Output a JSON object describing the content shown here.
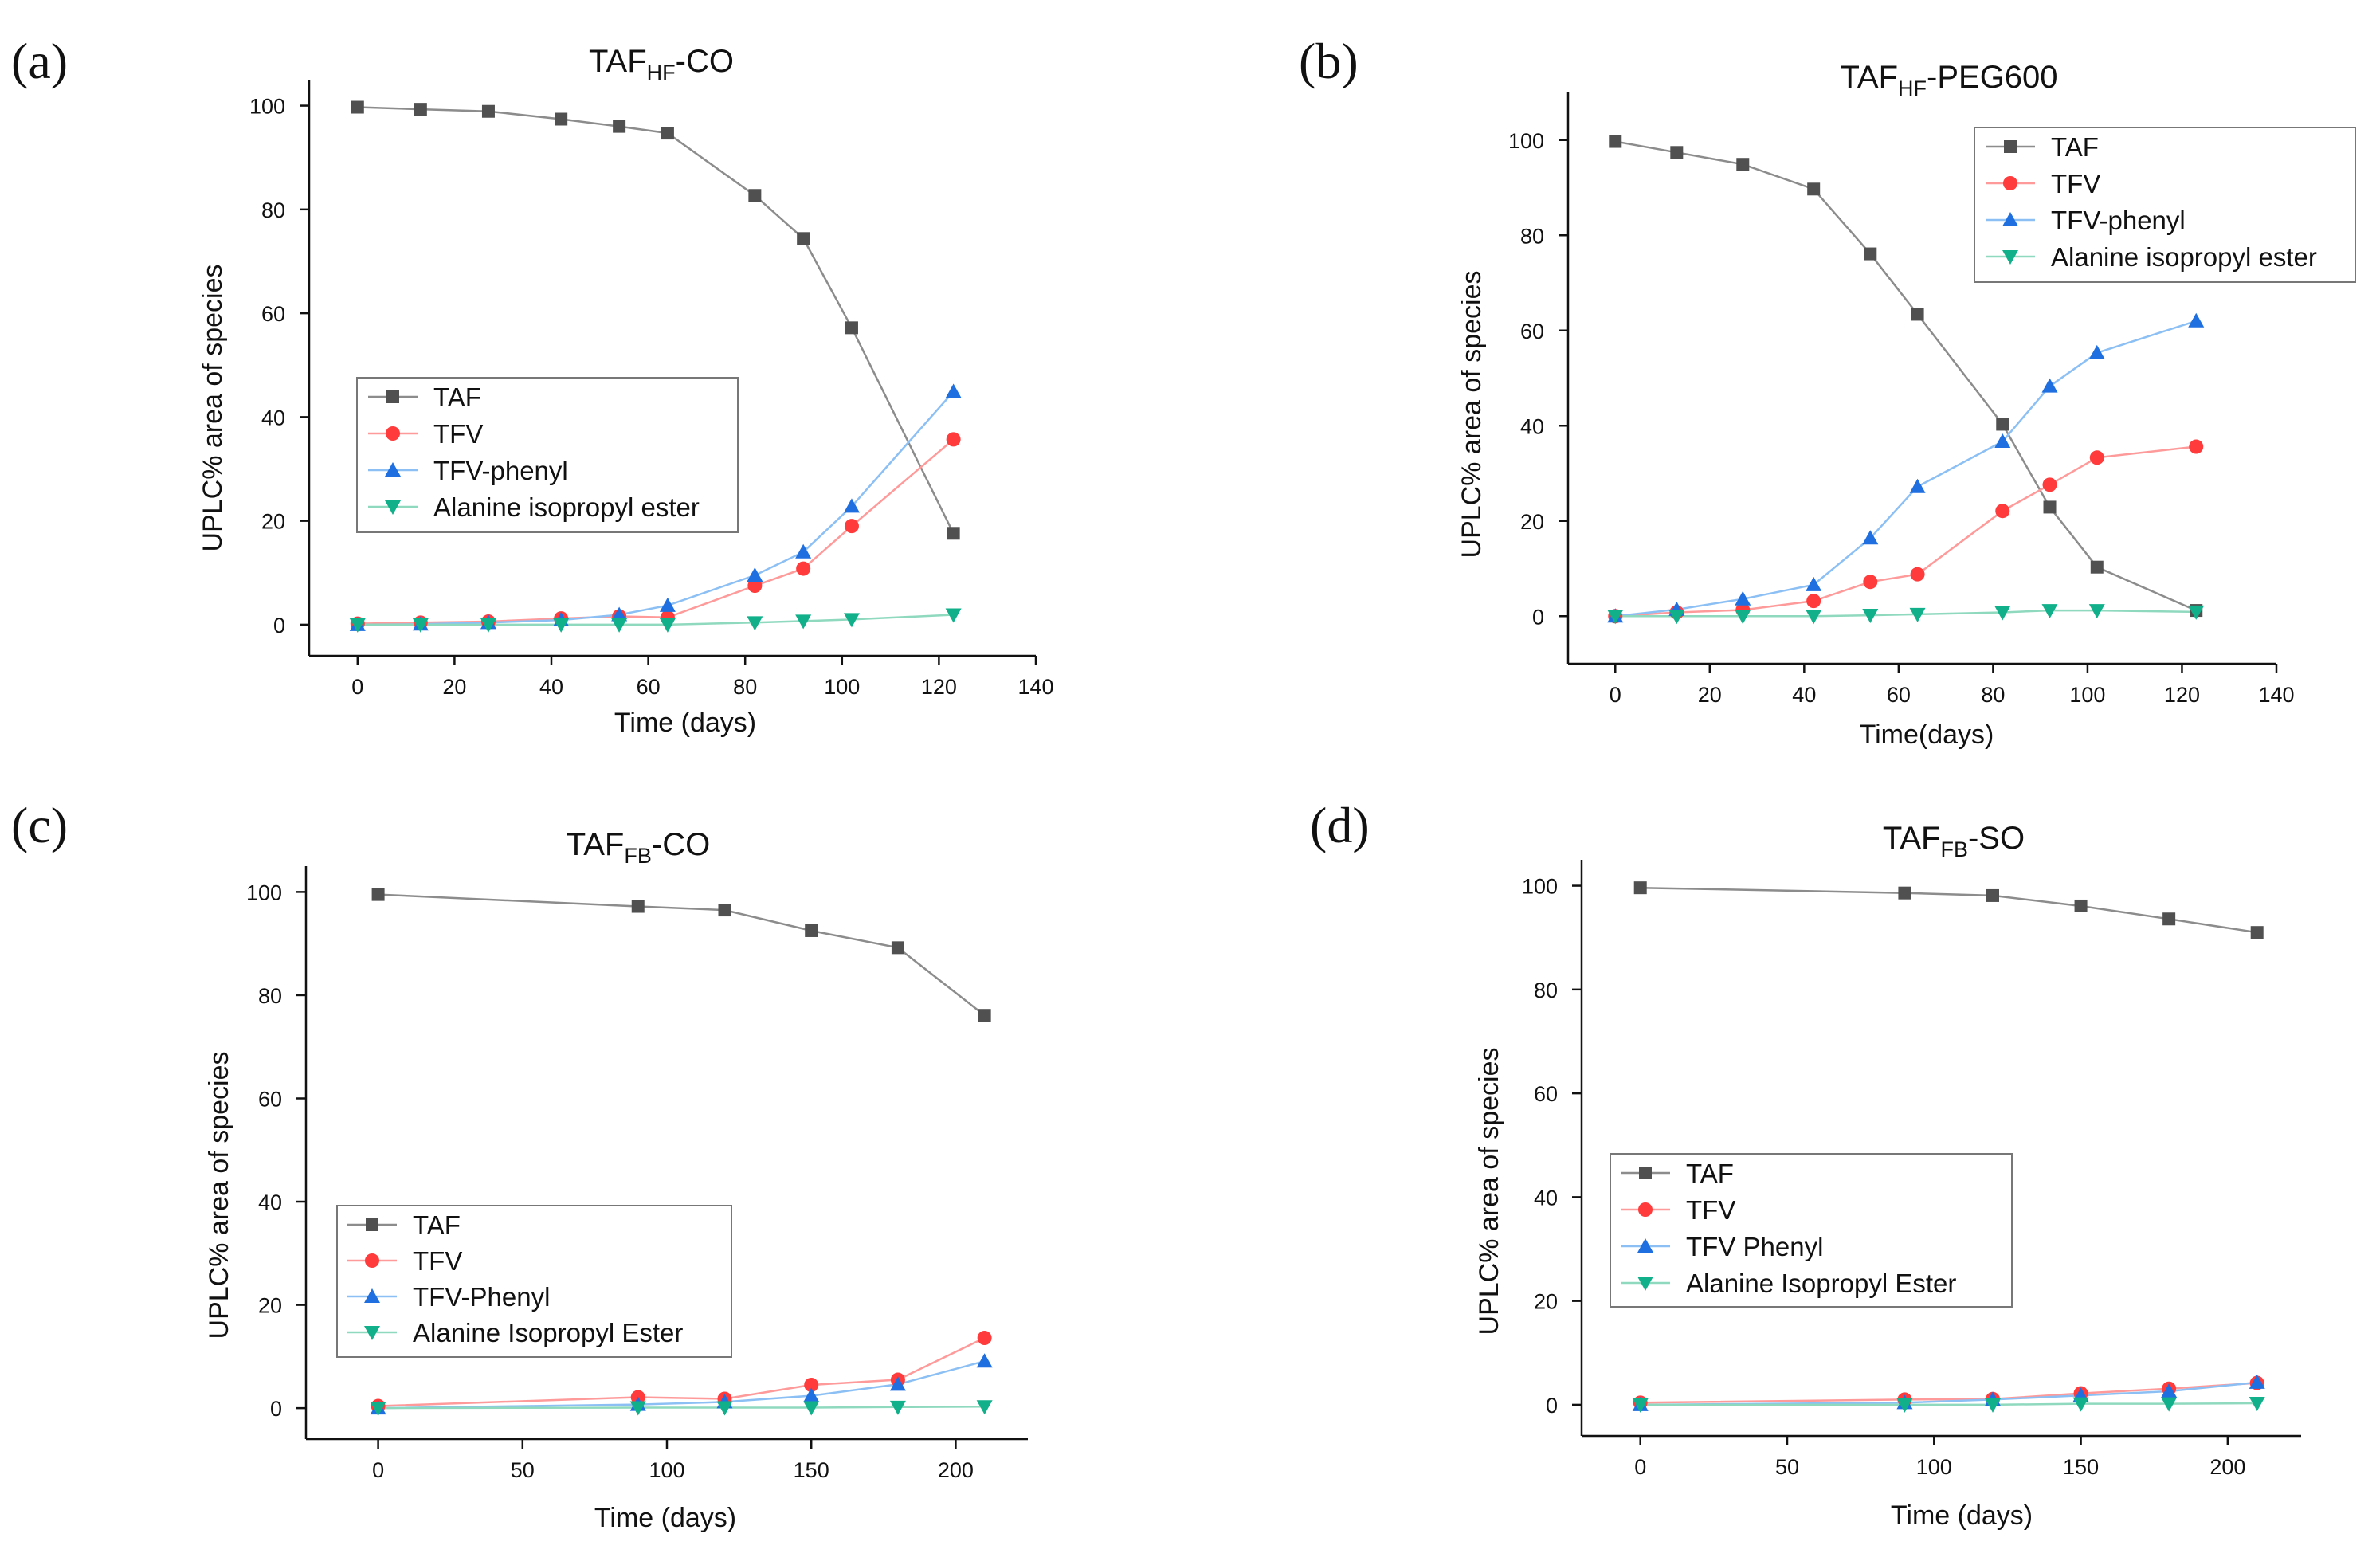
{
  "figure": {
    "panels": [
      "(a)",
      "(b)",
      "(c)",
      "(d)"
    ]
  },
  "colors": {
    "TAF": "#505050",
    "TFV": "#ff3b3b",
    "TFV_phenyl": "#1f6fe0",
    "alanine": "#12b08a",
    "axis": "#111111",
    "TAF_line": "#8c8c8c",
    "TFV_line": "#ff9a9a",
    "TFV_phenyl_line": "#8cc0f5",
    "alanine_line": "#8fd9bf"
  },
  "chart_data": [
    {
      "panel": "(a)",
      "type": "line",
      "title": {
        "main": "TAF",
        "sub": "HF",
        "suffix": "-CO"
      },
      "xlabel": "Time (days)",
      "ylabel": "UPLC% area of species",
      "xlim": [
        -10,
        140
      ],
      "ylim": [
        -6,
        105
      ],
      "xticks": [
        "0",
        "20",
        "40",
        "60",
        "80",
        "100",
        "120",
        "140"
      ],
      "xtick_values": [
        0,
        20,
        40,
        60,
        80,
        100,
        120,
        140
      ],
      "yticks": [
        "0",
        "20",
        "40",
        "60",
        "80",
        "100"
      ],
      "ytick_values": [
        0,
        20,
        40,
        60,
        80,
        100
      ],
      "legend_position": "center-left",
      "series": [
        {
          "name": "TAF",
          "marker": "square",
          "x": [
            0,
            13,
            27,
            42,
            54,
            64,
            82,
            92,
            102,
            123
          ],
          "y": [
            99.7,
            99.3,
            98.9,
            97.4,
            96.0,
            94.7,
            82.7,
            74.4,
            57.2,
            17.6
          ]
        },
        {
          "name": "TFV",
          "marker": "circle",
          "x": [
            0,
            13,
            27,
            42,
            54,
            64,
            82,
            92,
            102,
            123
          ],
          "y": [
            0.2,
            0.4,
            0.6,
            1.2,
            1.6,
            1.4,
            7.5,
            10.8,
            19.0,
            35.7
          ]
        },
        {
          "name": "TFV-phenyl",
          "marker": "triangle-up",
          "x": [
            0,
            13,
            27,
            42,
            54,
            64,
            82,
            92,
            102,
            123
          ],
          "y": [
            0.0,
            0.1,
            0.4,
            0.9,
            1.9,
            3.7,
            9.5,
            14.0,
            22.8,
            44.9
          ]
        },
        {
          "name": "Alanine isopropyl ester",
          "marker": "triangle-down",
          "x": [
            0,
            13,
            27,
            42,
            54,
            64,
            82,
            92,
            102,
            123
          ],
          "y": [
            0.0,
            0.0,
            0.0,
            0.0,
            0.0,
            0.0,
            0.4,
            0.7,
            1.0,
            1.9
          ]
        }
      ]
    },
    {
      "panel": "(b)",
      "type": "line",
      "title": {
        "main": "TAF",
        "sub": "HF",
        "suffix": "-PEG600"
      },
      "xlabel": "Time(days)",
      "ylabel": "UPLC% area of species",
      "xlim": [
        -10,
        140
      ],
      "ylim": [
        -10,
        110
      ],
      "xticks": [
        "0",
        "20",
        "40",
        "60",
        "80",
        "100",
        "120",
        "140"
      ],
      "xtick_values": [
        0,
        20,
        40,
        60,
        80,
        100,
        120,
        140
      ],
      "yticks": [
        "0",
        "20",
        "40",
        "60",
        "80",
        "100"
      ],
      "ytick_values": [
        0,
        20,
        40,
        60,
        80,
        100
      ],
      "legend_position": "top-right",
      "series": [
        {
          "name": "TAF",
          "marker": "square",
          "x": [
            0,
            13,
            27,
            42,
            54,
            64,
            82,
            92,
            102,
            123
          ],
          "y": [
            99.7,
            97.4,
            94.9,
            89.7,
            76.1,
            63.4,
            40.3,
            22.9,
            10.3,
            1.2
          ]
        },
        {
          "name": "TFV",
          "marker": "circle",
          "x": [
            0,
            13,
            27,
            42,
            54,
            64,
            82,
            92,
            102,
            123
          ],
          "y": [
            0.0,
            0.8,
            1.3,
            3.2,
            7.2,
            8.8,
            22.1,
            27.6,
            33.3,
            35.6
          ]
        },
        {
          "name": "TFV-phenyl",
          "marker": "triangle-up",
          "x": [
            0,
            13,
            27,
            42,
            54,
            64,
            82,
            92,
            102,
            123
          ],
          "y": [
            0.0,
            1.4,
            3.6,
            6.6,
            16.4,
            27.2,
            36.7,
            48.3,
            55.3,
            62.0
          ]
        },
        {
          "name": "Alanine isopropyl ester",
          "marker": "triangle-down",
          "x": [
            0,
            13,
            27,
            42,
            54,
            64,
            82,
            92,
            102,
            123
          ],
          "y": [
            0.0,
            0.0,
            0.0,
            0.0,
            0.2,
            0.4,
            0.8,
            1.2,
            1.2,
            0.9
          ]
        }
      ]
    },
    {
      "panel": "(c)",
      "type": "line",
      "title": {
        "main": "TAF",
        "sub": "FB",
        "suffix": "-CO"
      },
      "xlabel": "Time (days)",
      "ylabel": "UPLC% area of species",
      "xlim": [
        -25,
        225
      ],
      "ylim": [
        -6,
        105
      ],
      "xticks": [
        "0",
        "50",
        "100",
        "150",
        "200"
      ],
      "xtick_values": [
        0,
        50,
        100,
        150,
        200
      ],
      "yticks": [
        "0",
        "20",
        "40",
        "60",
        "80",
        "100"
      ],
      "ytick_values": [
        0,
        20,
        40,
        60,
        80,
        100
      ],
      "legend_position": "bottom-left",
      "series": [
        {
          "name": "TAF",
          "marker": "square",
          "x": [
            0,
            90,
            120,
            150,
            180,
            210
          ],
          "y": [
            99.5,
            97.2,
            96.5,
            92.5,
            89.2,
            76.1
          ]
        },
        {
          "name": "TFV",
          "marker": "circle",
          "x": [
            0,
            90,
            120,
            150,
            180,
            210
          ],
          "y": [
            0.4,
            2.1,
            1.8,
            4.5,
            5.5,
            13.6
          ]
        },
        {
          "name": "TFV-Phenyl",
          "marker": "triangle-up",
          "x": [
            0,
            90,
            120,
            150,
            180,
            210
          ],
          "y": [
            0.0,
            0.7,
            1.2,
            2.4,
            4.6,
            9.1
          ]
        },
        {
          "name": "Alanine Isopropyl Ester",
          "marker": "triangle-down",
          "x": [
            0,
            90,
            120,
            150,
            180,
            210
          ],
          "y": [
            0.0,
            0.1,
            0.1,
            0.1,
            0.2,
            0.3
          ]
        }
      ]
    },
    {
      "panel": "(d)",
      "type": "line",
      "title": {
        "main": "TAF",
        "sub": "FB",
        "suffix": "-SO"
      },
      "xlabel": "Time (days)",
      "ylabel": "UPLC% area of species",
      "xlim": [
        -20,
        225
      ],
      "ylim": [
        -6,
        105
      ],
      "xticks": [
        "0",
        "50",
        "100",
        "150",
        "200"
      ],
      "xtick_values": [
        0,
        50,
        100,
        150,
        200
      ],
      "yticks": [
        "0",
        "20",
        "40",
        "60",
        "80",
        "100"
      ],
      "ytick_values": [
        0,
        20,
        40,
        60,
        80,
        100
      ],
      "legend_position": "bottom-left",
      "series": [
        {
          "name": "TAF",
          "marker": "square",
          "x": [
            0,
            90,
            120,
            150,
            180,
            210
          ],
          "y": [
            99.6,
            98.6,
            98.1,
            96.1,
            93.6,
            91.0
          ]
        },
        {
          "name": "TFV",
          "marker": "circle",
          "x": [
            0,
            90,
            120,
            150,
            180,
            210
          ],
          "y": [
            0.4,
            1.0,
            1.1,
            2.2,
            3.1,
            4.2
          ]
        },
        {
          "name": "TFV Phenyl",
          "marker": "triangle-up",
          "x": [
            0,
            90,
            120,
            150,
            180,
            210
          ],
          "y": [
            0.0,
            0.4,
            1.0,
            1.8,
            2.6,
            4.3
          ]
        },
        {
          "name": "Alanine Isopropyl Ester",
          "marker": "triangle-down",
          "x": [
            0,
            90,
            120,
            150,
            180,
            210
          ],
          "y": [
            0.0,
            0.0,
            0.0,
            0.2,
            0.2,
            0.3
          ]
        }
      ]
    }
  ]
}
